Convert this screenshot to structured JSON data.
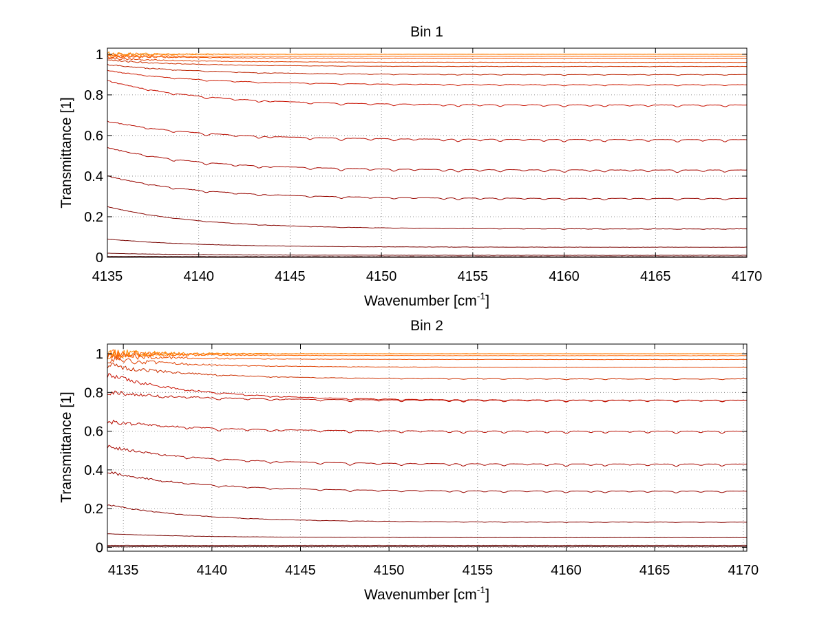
{
  "figure": {
    "background": "#ffffff"
  },
  "chart_data": [
    {
      "type": "line",
      "title": "Bin 1",
      "xlabel": "Wavenumber [cm",
      "xlabel_sup": "-1",
      "xlabel_end": "]",
      "ylabel": "Transmittance [1]",
      "xlim": [
        4135,
        4170
      ],
      "ylim": [
        0,
        1.03
      ],
      "xticks": [
        4135,
        4140,
        4145,
        4150,
        4155,
        4160,
        4165,
        4170
      ],
      "yticks": [
        0,
        0.2,
        0.4,
        0.6,
        0.8,
        1
      ],
      "ytick_labels": [
        "0",
        "0.2",
        "0.4",
        "0.6",
        "0.8",
        "1"
      ],
      "grid": true,
      "series": [
        {
          "start": 1.0,
          "end": 1.0,
          "sharp": 0.6,
          "offset": 0.0,
          "noise_start": 0.012,
          "color": "#ff8c00"
        },
        {
          "start": 1.0,
          "end": 1.0,
          "sharp": 0.6,
          "offset": 0.0,
          "noise_start": 0.01,
          "color": "#ff7a00"
        },
        {
          "start": 0.99,
          "end": 0.99,
          "sharp": 0.6,
          "offset": 0.0,
          "noise_start": 0.01,
          "color": "#ff6400"
        },
        {
          "start": 0.99,
          "end": 0.98,
          "sharp": 0.6,
          "offset": 0.0,
          "noise_start": 0.008,
          "color": "#f05000"
        },
        {
          "start": 0.98,
          "end": 0.96,
          "sharp": 0.6,
          "offset": 0.0,
          "noise_start": 0.006,
          "color": "#e04000"
        },
        {
          "start": 0.97,
          "end": 0.94,
          "sharp": 0.7,
          "offset": 0.002,
          "noise_start": 0.004,
          "color": "#cc3000"
        },
        {
          "start": 0.95,
          "end": 0.9,
          "sharp": 0.8,
          "offset": 0.004,
          "noise_start": 0.003,
          "color": "#bb2200"
        },
        {
          "start": 0.92,
          "end": 0.85,
          "sharp": 0.8,
          "offset": 0.006,
          "noise_start": 0.002,
          "color": "#cc1a00"
        },
        {
          "start": 0.87,
          "end": 0.75,
          "sharp": 1.0,
          "offset": 0.008,
          "noise_start": 0.002,
          "color": "#c81000"
        },
        {
          "start": 0.67,
          "end": 0.58,
          "sharp": 1.0,
          "offset": 0.01,
          "noise_start": 0.002,
          "color": "#b80c00"
        },
        {
          "start": 0.54,
          "end": 0.43,
          "sharp": 1.0,
          "offset": 0.01,
          "noise_start": 0.002,
          "color": "#a80800"
        },
        {
          "start": 0.4,
          "end": 0.29,
          "sharp": 0.9,
          "offset": 0.008,
          "noise_start": 0.002,
          "color": "#980600"
        },
        {
          "start": 0.25,
          "end": 0.14,
          "sharp": 0.5,
          "offset": 0.004,
          "noise_start": 0.0,
          "color": "#880400"
        },
        {
          "start": 0.09,
          "end": 0.05,
          "sharp": 0.2,
          "offset": 0.001,
          "noise_start": 0.0,
          "color": "#780300"
        },
        {
          "start": 0.02,
          "end": 0.01,
          "sharp": 0.0,
          "offset": 0.0,
          "noise_start": 0.0,
          "color": "#680200"
        },
        {
          "start": 0.005,
          "end": 0.003,
          "sharp": 0.0,
          "offset": 0.0,
          "noise_start": 0.0,
          "color": "#400000"
        }
      ]
    },
    {
      "type": "line",
      "title": "Bin 2",
      "xlabel": "Wavenumber [cm",
      "xlabel_sup": "-1",
      "xlabel_end": "]",
      "ylabel": "Transmittance [1]",
      "xlim": [
        4134.1,
        4170.2
      ],
      "ylim": [
        -0.02,
        1.05
      ],
      "xticks": [
        4135,
        4140,
        4145,
        4150,
        4155,
        4160,
        4165,
        4170
      ],
      "yticks": [
        0,
        0.2,
        0.4,
        0.6,
        0.8,
        1
      ],
      "ytick_labels": [
        "0",
        "0.2",
        "0.4",
        "0.6",
        "0.8",
        "1"
      ],
      "grid": true,
      "series": [
        {
          "start": 1.0,
          "end": 1.0,
          "sharp": 0.6,
          "offset": 0.0,
          "noise_start": 0.03,
          "color": "#ff8c00"
        },
        {
          "start": 1.0,
          "end": 1.0,
          "sharp": 0.6,
          "offset": 0.0,
          "noise_start": 0.028,
          "color": "#ff7a00"
        },
        {
          "start": 1.0,
          "end": 0.99,
          "sharp": 0.6,
          "offset": 0.0,
          "noise_start": 0.025,
          "color": "#ff6400"
        },
        {
          "start": 0.99,
          "end": 0.97,
          "sharp": 0.6,
          "offset": 0.0,
          "noise_start": 0.022,
          "color": "#f05000"
        },
        {
          "start": 0.97,
          "end": 0.93,
          "sharp": 0.7,
          "offset": 0.002,
          "noise_start": 0.02,
          "color": "#e04000"
        },
        {
          "start": 0.94,
          "end": 0.87,
          "sharp": 0.8,
          "offset": 0.004,
          "noise_start": 0.018,
          "color": "#cc3000"
        },
        {
          "start": 0.89,
          "end": 0.76,
          "sharp": 1.0,
          "offset": 0.006,
          "noise_start": 0.016,
          "color": "#c81000"
        },
        {
          "start": 0.8,
          "end": 0.76,
          "sharp": 1.0,
          "offset": 0.008,
          "noise_start": 0.014,
          "color": "#bb1000"
        },
        {
          "start": 0.65,
          "end": 0.6,
          "sharp": 1.0,
          "offset": 0.01,
          "noise_start": 0.012,
          "color": "#b80c00"
        },
        {
          "start": 0.52,
          "end": 0.43,
          "sharp": 1.0,
          "offset": 0.01,
          "noise_start": 0.01,
          "color": "#a80800"
        },
        {
          "start": 0.39,
          "end": 0.29,
          "sharp": 0.9,
          "offset": 0.008,
          "noise_start": 0.008,
          "color": "#980600"
        },
        {
          "start": 0.22,
          "end": 0.13,
          "sharp": 0.5,
          "offset": 0.004,
          "noise_start": 0.004,
          "color": "#880400"
        },
        {
          "start": 0.07,
          "end": 0.05,
          "sharp": 0.2,
          "offset": 0.001,
          "noise_start": 0.0,
          "color": "#780300"
        },
        {
          "start": 0.01,
          "end": 0.01,
          "sharp": 0.0,
          "offset": 0.0,
          "noise_start": 0.0,
          "color": "#680200"
        },
        {
          "start": 0.003,
          "end": 0.003,
          "sharp": 0.0,
          "offset": 0.0,
          "noise_start": 0.0,
          "color": "#400000"
        }
      ]
    }
  ]
}
